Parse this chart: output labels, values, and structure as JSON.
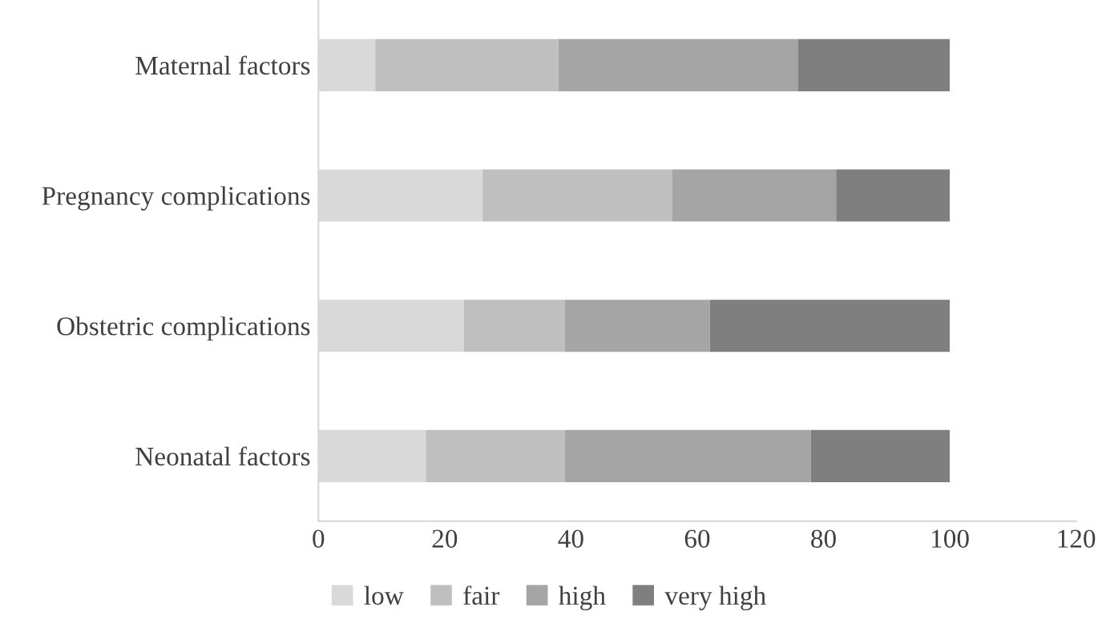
{
  "chart_data": {
    "type": "bar",
    "orientation": "horizontal",
    "stacked": true,
    "categories": [
      "Maternal factors",
      "Pregnancy complications",
      "Obstetric complications",
      "Neonatal factors"
    ],
    "series": [
      {
        "name": "low",
        "color": "#d9d9d9",
        "values": [
          9,
          26,
          23,
          17
        ]
      },
      {
        "name": "fair",
        "color": "#bfbfbf",
        "values": [
          29,
          30,
          16,
          22
        ]
      },
      {
        "name": "high",
        "color": "#a5a5a5",
        "values": [
          38,
          26,
          23,
          39
        ]
      },
      {
        "name": "very high",
        "color": "#7f7f7f",
        "values": [
          24,
          18,
          38,
          22
        ]
      }
    ],
    "xlim": [
      0,
      120
    ],
    "xticks": [
      0,
      20,
      40,
      60,
      80,
      100,
      120
    ],
    "grid": false,
    "legend": "bottom"
  }
}
